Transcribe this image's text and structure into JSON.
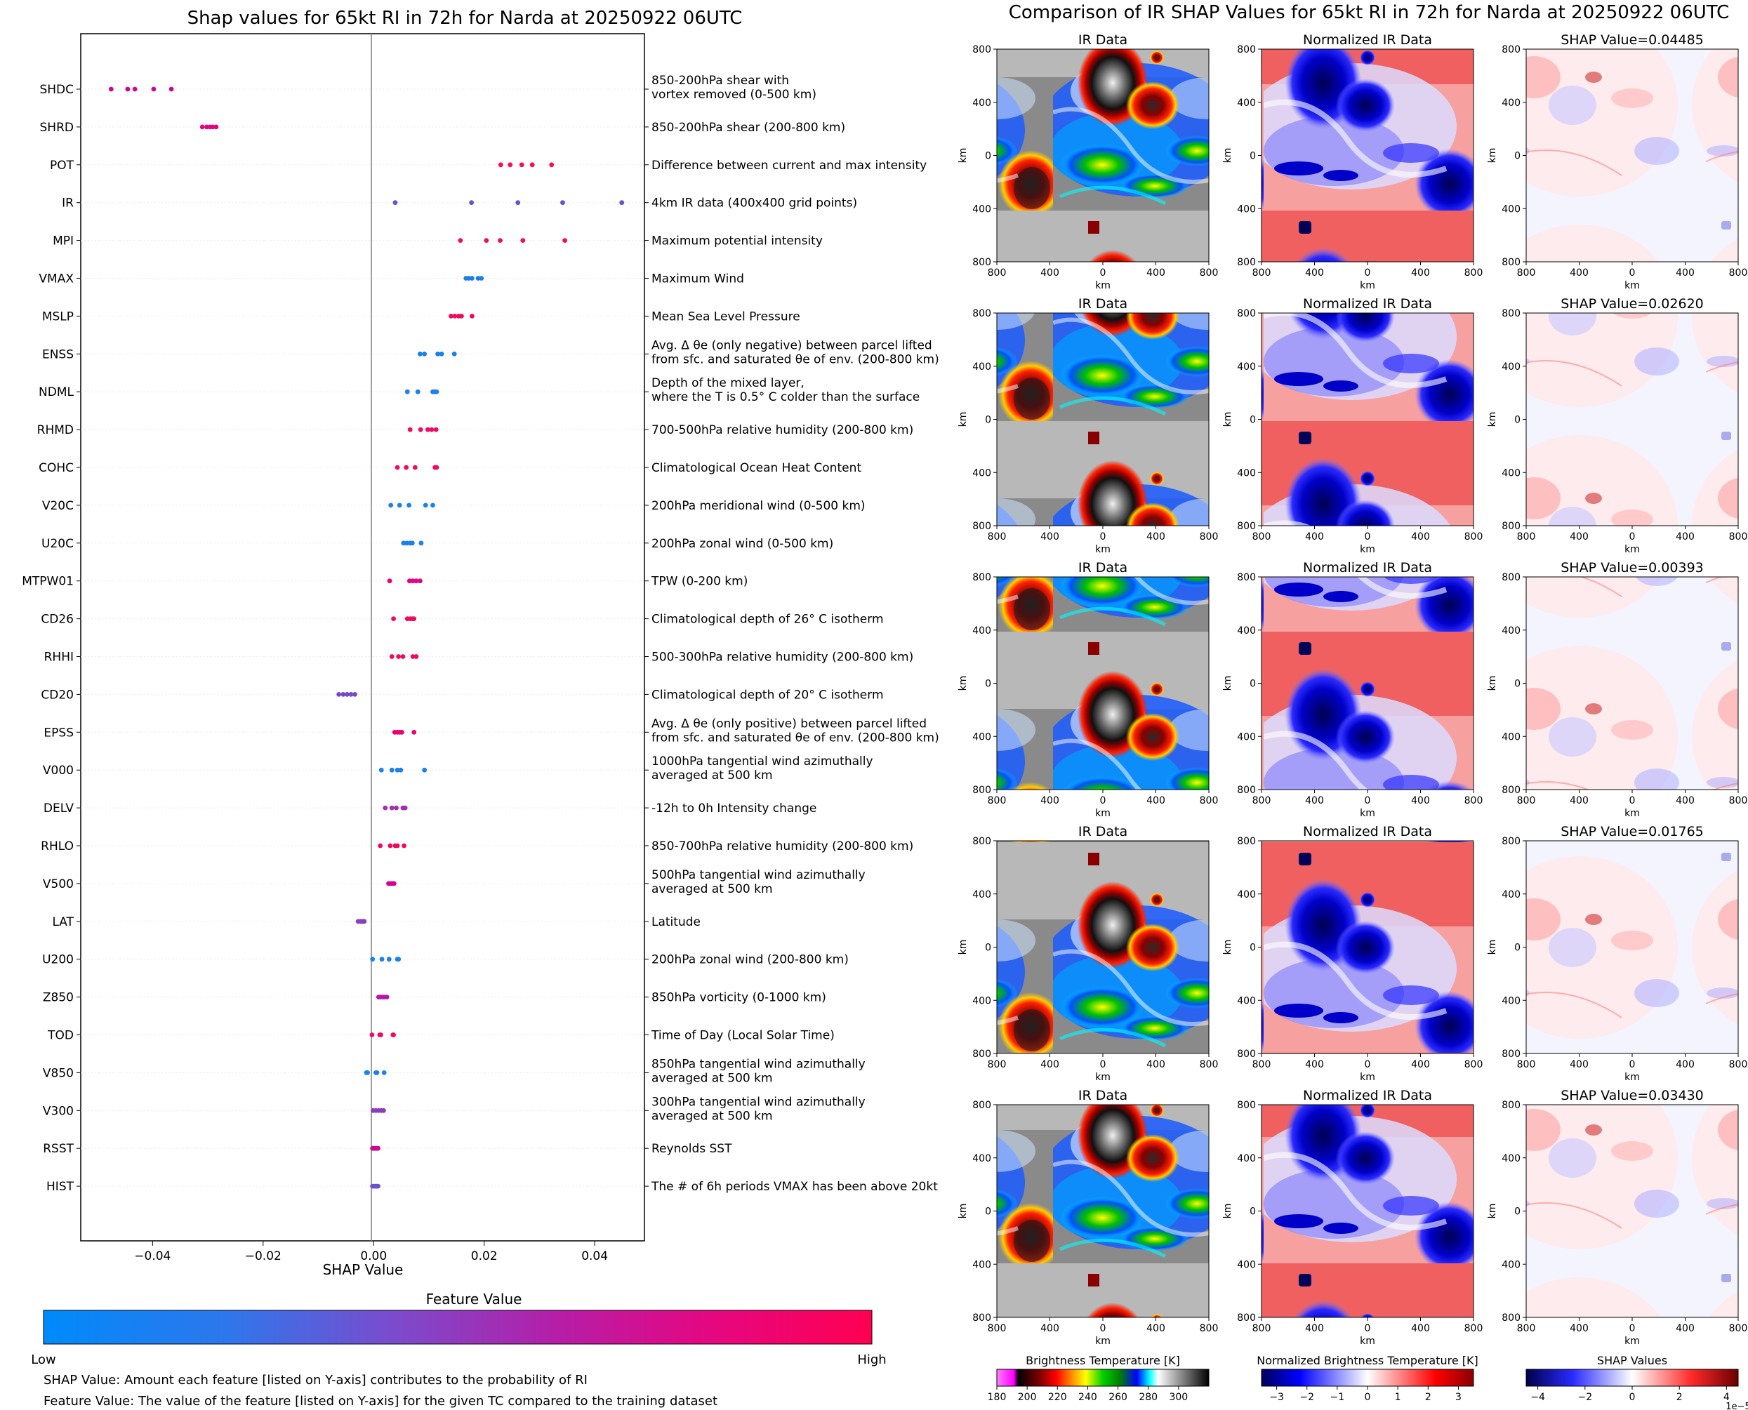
{
  "left": {
    "title": "Shap values for 65kt RI in 72h for Narda at 20250922 06UTC",
    "xlabel": "SHAP Value",
    "xticks": [
      "−0.04",
      "−0.02",
      "0.00",
      "0.02",
      "0.04"
    ],
    "colorbar": {
      "title": "Feature Value",
      "low": "Low",
      "high": "High",
      "colors": [
        "#008afa",
        "#2d77ec",
        "#7a4ccd",
        "#b51ea7",
        "#e40782",
        "#ff0052"
      ]
    },
    "notes": [
      "SHAP Value: Amount each feature [listed on Y-axis] contributes to the probability of RI",
      "Feature Value: The value of the feature [listed on Y-axis] for the given TC compared to the training dataset"
    ]
  },
  "right": {
    "title": "Comparison of IR SHAP Values for 65kt RI in 72h for Narda at 20250922 06UTC",
    "col_titles": [
      "IR Data",
      "Normalized IR Data"
    ],
    "shap_titles": [
      "SHAP Value=0.04485",
      "SHAP Value=0.02620",
      "SHAP Value=0.00393",
      "SHAP Value=0.01765",
      "SHAP Value=0.03430"
    ],
    "axis_label": "km",
    "ticks": [
      "800",
      "400",
      "0",
      "400",
      "800"
    ],
    "colorbars": [
      {
        "title": "Brightness Temperature [K]",
        "ticks": [
          "180",
          "200",
          "220",
          "240",
          "260",
          "280",
          "300"
        ]
      },
      {
        "title": "Normalized Brightness Temperature [K]",
        "ticks": [
          "−3",
          "−2",
          "−1",
          "0",
          "1",
          "2",
          "3"
        ]
      },
      {
        "title": "SHAP Values",
        "ticks": [
          "−4",
          "−2",
          "0",
          "2",
          "4"
        ],
        "offset": "1e−5"
      }
    ]
  },
  "chart_data": [
    {
      "type": "scatter",
      "title": "Shap values for 65kt RI in 72h for Narda at 20250922 06UTC",
      "xlabel": "SHAP Value",
      "xlim": [
        -0.053,
        0.049
      ],
      "features": [
        {
          "name": "SHDC",
          "desc": "850-200hPa shear with\nvortex removed (0-500 km)",
          "values": [
            -0.0475,
            -0.0445,
            -0.0432,
            -0.0398,
            -0.0366
          ],
          "color": "#d0058e"
        },
        {
          "name": "SHRD",
          "desc": "850-200hPa shear (200-800 km)",
          "values": [
            -0.031,
            -0.0302,
            -0.0296,
            -0.0291,
            -0.0285
          ],
          "color": "#e4057f"
        },
        {
          "name": "POT",
          "desc": "Difference between current and max intensity",
          "values": [
            0.023,
            0.0247,
            0.0268,
            0.0287,
            0.0322
          ],
          "color": "#ff0a55"
        },
        {
          "name": "IR",
          "desc": "4km IR data (400x400 grid points)",
          "values": [
            0.0039,
            0.0177,
            0.0261,
            0.0342,
            0.0449
          ],
          "color": "#6a51d0"
        },
        {
          "name": "MPI",
          "desc": "Maximum potential intensity",
          "values": [
            0.0157,
            0.0204,
            0.0229,
            0.027,
            0.0346
          ],
          "color": "#f50a5e"
        },
        {
          "name": "VMAX",
          "desc": "Maximum Wind",
          "values": [
            0.0167,
            0.0172,
            0.0178,
            0.0189,
            0.0195
          ],
          "color": "#1a7fe8"
        },
        {
          "name": "MSLP",
          "desc": "Mean Sea Level Pressure",
          "values": [
            0.014,
            0.0147,
            0.0154,
            0.0159,
            0.0178
          ],
          "color": "#f00a5a"
        },
        {
          "name": "ENSS",
          "desc": "Avg. Δ θe (only negative) between parcel lifted\nfrom sfc. and saturated θe of env. (200-800 km)",
          "values": [
            0.0084,
            0.0092,
            0.0116,
            0.0123,
            0.0146
          ],
          "color": "#1a80ea"
        },
        {
          "name": "NDML",
          "desc": "Depth of the mixed layer,\nwhere the T is 0.5° C colder than the surface",
          "values": [
            0.0061,
            0.008,
            0.0107,
            0.011,
            0.0114
          ],
          "color": "#1a82ea"
        },
        {
          "name": "RHMD",
          "desc": "700-500hPa relative humidity (200-800 km)",
          "values": [
            0.0066,
            0.0085,
            0.0098,
            0.0105,
            0.0113
          ],
          "color": "#f00a62"
        },
        {
          "name": "COHC",
          "desc": "Climatological Ocean Heat Content",
          "values": [
            0.0043,
            0.0059,
            0.0075,
            0.0111,
            0.0114
          ],
          "color": "#f00a62"
        },
        {
          "name": "V20C",
          "desc": "200hPa meridional wind (0-500 km)",
          "values": [
            0.0031,
            0.0047,
            0.0064,
            0.0094,
            0.0107
          ],
          "color": "#1a82ea"
        },
        {
          "name": "U20C",
          "desc": "200hPa zonal wind (0-500 km)",
          "values": [
            0.0054,
            0.006,
            0.0066,
            0.007,
            0.0086
          ],
          "color": "#1a82ea"
        },
        {
          "name": "MTPW01",
          "desc": "TPW (0-200 km)",
          "values": [
            0.0029,
            0.0065,
            0.0071,
            0.0077,
            0.0084
          ],
          "color": "#e2057c"
        },
        {
          "name": "CD26",
          "desc": "Climatological depth of 26° C isotherm",
          "values": [
            0.0036,
            0.0061,
            0.0066,
            0.007,
            0.0073
          ],
          "color": "#f00a62"
        },
        {
          "name": "RHHI",
          "desc": "500-300hPa relative humidity (200-800 km)",
          "values": [
            0.0033,
            0.0045,
            0.0053,
            0.0071,
            0.0077
          ],
          "color": "#f00a62"
        },
        {
          "name": "CD20",
          "desc": "Climatological depth of 20° C isotherm",
          "values": [
            -0.0063,
            -0.0055,
            -0.0048,
            -0.0041,
            -0.0034
          ],
          "color": "#7548cc"
        },
        {
          "name": "EPSS",
          "desc": "Avg. Δ θe (only positive) between parcel lifted\nfrom sfc. and saturated θe of env. (200-800 km)",
          "values": [
            0.0038,
            0.0043,
            0.0047,
            0.0051,
            0.0073
          ],
          "color": "#e8066e"
        },
        {
          "name": "V000",
          "desc": "1000hPa tangential wind azimuthally\naveraged at 500 km",
          "values": [
            0.0014,
            0.0033,
            0.0043,
            0.0049,
            0.0092
          ],
          "color": "#1a82ea"
        },
        {
          "name": "DELV",
          "desc": "-12h to 0h Intensity change",
          "values": [
            0.0021,
            0.0033,
            0.0041,
            0.0053,
            0.0057
          ],
          "color": "#a22db3"
        },
        {
          "name": "RHLO",
          "desc": "850-700hPa relative humidity (200-800 km)",
          "values": [
            0.0012,
            0.003,
            0.0039,
            0.0043,
            0.0055
          ],
          "color": "#f0085e"
        },
        {
          "name": "V500",
          "desc": "500hPa tangential wind azimuthally\naveraged at 500 km",
          "values": [
            0.0027,
            0.003,
            0.0033,
            0.0035,
            0.0037
          ],
          "color": "#d0058e"
        },
        {
          "name": "LAT",
          "desc": "Latitude",
          "values": [
            -0.0028,
            -0.0023,
            -0.0021,
            -0.0019,
            -0.0017
          ],
          "color": "#8b3dc2"
        },
        {
          "name": "U200",
          "desc": "200hPa zonal wind (200-800 km)",
          "values": [
            -0.0002,
            0.0015,
            0.0028,
            0.0043,
            0.0045
          ],
          "color": "#1a82ea"
        },
        {
          "name": "Z850",
          "desc": "850hPa vorticity (0-1000 km)",
          "values": [
            0.0009,
            0.0012,
            0.0016,
            0.0019,
            0.0024
          ],
          "color": "#b11aa8"
        },
        {
          "name": "TOD",
          "desc": "Time of Day (Local Solar Time)",
          "values": [
            -0.0003,
            0.0011,
            0.0013,
            0.0035,
            0.0036
          ],
          "color": "#f00a62"
        },
        {
          "name": "V850",
          "desc": "850hPa tangential wind azimuthally\naveraged at 500 km",
          "values": [
            -0.0013,
            -0.0011,
            0.0004,
            0.0006,
            0.0019
          ],
          "color": "#1a82ea"
        },
        {
          "name": "V300",
          "desc": "300hPa tangential wind azimuthally\naveraged at 500 km",
          "values": [
            -0.0001,
            0.0004,
            0.0009,
            0.0014,
            0.0018
          ],
          "color": "#8b3dc2"
        },
        {
          "name": "RSST",
          "desc": "Reynolds SST",
          "values": [
            -0.0002,
            0.0001,
            0.0004,
            0.0007,
            0.0008
          ],
          "color": "#d0058e"
        },
        {
          "name": "HIST",
          "desc": "The # of 6h periods VMAX has been above 20kt",
          "values": [
            -0.0002,
            0.0001,
            0.0004,
            0.0006,
            0.0008
          ],
          "color": "#6a51d0"
        }
      ]
    },
    {
      "type": "heatmap",
      "title": "Comparison of IR SHAP Values for 65kt RI in 72h for Narda at 20250922 06UTC",
      "rows": 5,
      "columns": [
        "IR Data",
        "Normalized IR Data",
        "SHAP Value"
      ],
      "shap_values": [
        0.04485,
        0.0262,
        0.00393,
        0.01765,
        0.0343
      ],
      "axis_range_km": [
        -800,
        800
      ],
      "colormaps": {
        "ir": [
          "#ff00ff",
          "#000000",
          "#ff0000",
          "#ffff00",
          "#00ff00",
          "#0000ff",
          "#00ffff",
          "#ffffff",
          "#000000"
        ],
        "normalized": [
          "#00008b",
          "#ffffff",
          "#ff0000"
        ],
        "shap": [
          "#00008b",
          "#ffffff",
          "#8b0000"
        ]
      }
    }
  ]
}
